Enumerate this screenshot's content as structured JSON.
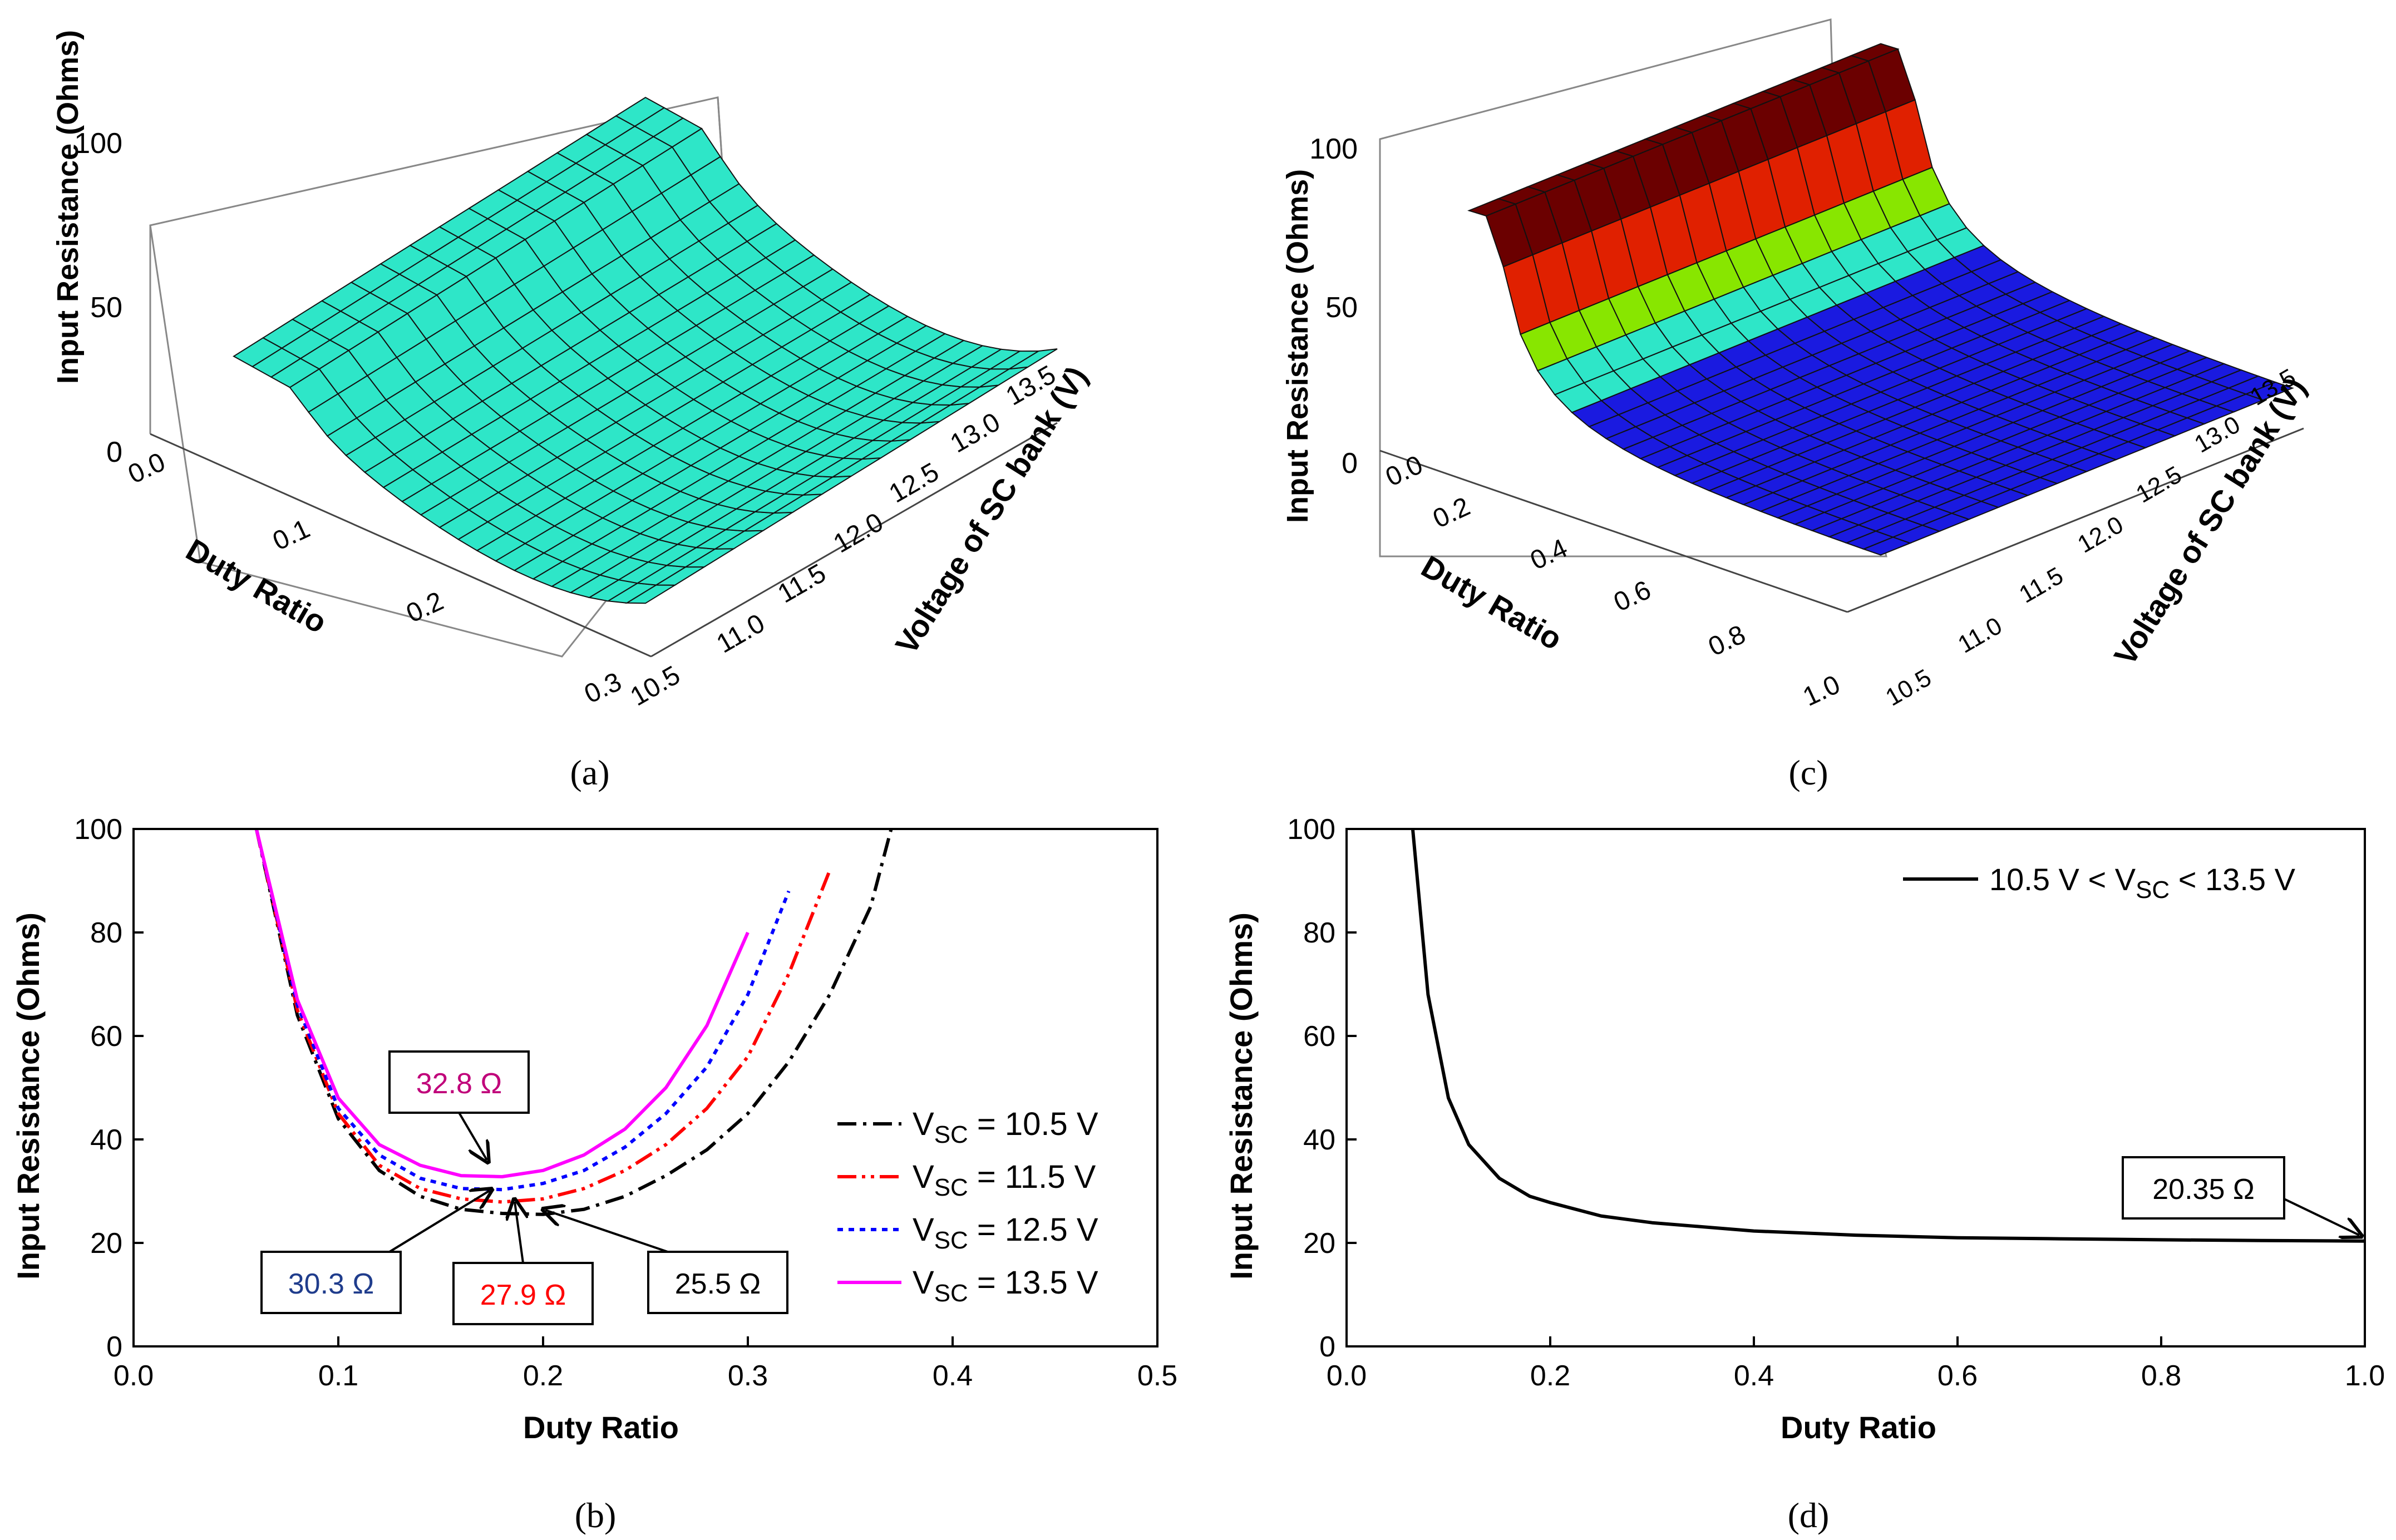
{
  "panel_labels": {
    "a": "(a)",
    "b": "(b)",
    "c": "(c)",
    "d": "(d)"
  },
  "chart_data": [
    {
      "id": "a",
      "type": "surface3d",
      "zlabel": "Input Resistance (Ohms)",
      "xlabel": "Duty Ratio",
      "ylabel": "Voltage of SC bank (V)",
      "z_ticks": [
        "0",
        "50",
        "100"
      ],
      "x_ticks": [
        "0.0",
        "0.1",
        "0.2",
        "0.3"
      ],
      "y_ticks": [
        "10.5",
        "11.0",
        "11.5",
        "12.0",
        "12.5",
        "13.0",
        "13.5"
      ],
      "xlim": [
        0.0,
        0.3
      ],
      "ylim": [
        10.5,
        13.5
      ],
      "zlim": [
        0,
        100
      ],
      "band_colors": [
        "#6b0000",
        "#b00000",
        "#e02000",
        "#ff3b00",
        "#ff9900",
        "#88e600",
        "#2ee6c8",
        "#d6d61a"
      ]
    },
    {
      "id": "b",
      "type": "line",
      "xlabel": "Duty Ratio",
      "ylabel": "Input Resistance (Ohms)",
      "xlim": [
        0.0,
        0.5
      ],
      "ylim": [
        0,
        100
      ],
      "x_ticks": [
        "0.0",
        "0.1",
        "0.2",
        "0.3",
        "0.4",
        "0.5"
      ],
      "y_ticks": [
        "0",
        "20",
        "40",
        "60",
        "80",
        "100"
      ],
      "x": [
        0.06,
        0.08,
        0.1,
        0.12,
        0.14,
        0.16,
        0.18,
        0.2,
        0.22,
        0.24,
        0.26,
        0.28,
        0.3,
        0.32,
        0.34,
        0.36,
        0.37
      ],
      "series": [
        {
          "name": "V_SC = 10.5 V",
          "color": "#000000",
          "dash": "dashdot",
          "values": [
            100,
            64,
            44,
            34,
            29,
            26.5,
            25.7,
            25.5,
            26.5,
            29,
            33,
            38,
            45,
            55,
            68,
            85,
            100
          ]
        },
        {
          "name": "V_SC = 11.5 V",
          "color": "#ff0000",
          "dash": "dashdotdot",
          "values": [
            100,
            65,
            45,
            35,
            30.5,
            28.5,
            27.9,
            28.5,
            30.5,
            34,
            39,
            46,
            56,
            72,
            92,
            null,
            null
          ]
        },
        {
          "name": "V_SC = 12.5 V",
          "color": "#0000ff",
          "dash": "dot",
          "values": [
            100,
            66,
            46,
            37,
            32.5,
            30.5,
            30.3,
            31.5,
            34,
            38.5,
            45,
            54,
            68,
            88,
            null,
            null,
            null
          ]
        },
        {
          "name": "V_SC = 13.5 V",
          "color": "#ff00ff",
          "dash": "solid",
          "values": [
            100,
            67,
            48,
            39,
            35,
            33,
            32.8,
            34,
            37,
            42,
            50,
            62,
            80,
            null,
            null,
            null,
            null
          ]
        }
      ],
      "legend": [
        {
          "main": "V",
          "sub": "SC",
          "rest": " = 10.5 V"
        },
        {
          "main": "V",
          "sub": "SC",
          "rest": " = 11.5 V"
        },
        {
          "main": "V",
          "sub": "SC",
          "rest": " = 12.5 V"
        },
        {
          "main": "V",
          "sub": "SC",
          "rest": " = 13.5 V"
        }
      ],
      "annotations": [
        {
          "text": "32.8 Ω",
          "color": "#c0007a",
          "x": 0.17,
          "y": 32.8
        },
        {
          "text": "30.3 Ω",
          "color": "#1f3c8c",
          "x": 0.175,
          "y": 30.3
        },
        {
          "text": "27.9 Ω",
          "color": "#ff0000",
          "x": 0.185,
          "y": 27.9
        },
        {
          "text": "25.5 Ω",
          "color": "#000000",
          "x": 0.2,
          "y": 25.5
        }
      ]
    },
    {
      "id": "c",
      "type": "surface3d",
      "zlabel": "Input Resistance (Ohms)",
      "xlabel": "Duty Ratio",
      "ylabel": "Voltage of SC bank (V)",
      "z_ticks": [
        "0",
        "50",
        "100"
      ],
      "x_ticks": [
        "0.0",
        "0.2",
        "0.4",
        "0.6",
        "0.8",
        "1.0"
      ],
      "y_ticks": [
        "10.5",
        "11.0",
        "11.5",
        "12.0",
        "12.5",
        "13.0",
        "13.5"
      ],
      "xlim": [
        0.0,
        1.0
      ],
      "ylim": [
        10.5,
        13.5
      ],
      "zlim": [
        0,
        100
      ],
      "band_colors": [
        "#6b0000",
        "#b00000",
        "#e02000",
        "#ff3b00",
        "#ff9900",
        "#88e600",
        "#2ee6c8",
        "#1a1ae0"
      ]
    },
    {
      "id": "d",
      "type": "line",
      "xlabel": "Duty Ratio",
      "ylabel": "Input Resistance (Ohms)",
      "xlim": [
        0.0,
        1.0
      ],
      "ylim": [
        0,
        100
      ],
      "x_ticks": [
        "0.0",
        "0.2",
        "0.4",
        "0.6",
        "0.8",
        "1.0"
      ],
      "y_ticks": [
        "0",
        "20",
        "40",
        "60",
        "80",
        "100"
      ],
      "x": [
        0.065,
        0.08,
        0.1,
        0.12,
        0.15,
        0.18,
        0.2,
        0.25,
        0.3,
        0.4,
        0.5,
        0.6,
        0.7,
        0.8,
        0.9,
        1.0
      ],
      "series": [
        {
          "name": "10.5 V < V_SC < 13.5 V",
          "color": "#000000",
          "dash": "solid",
          "values": [
            100,
            68,
            48,
            39,
            32.5,
            29,
            27.8,
            25.2,
            23.9,
            22.3,
            21.5,
            21.0,
            20.8,
            20.6,
            20.45,
            20.35
          ]
        }
      ],
      "legend": [
        {
          "main": "10.5 V < V",
          "sub": "SC",
          "rest": " < 13.5 V"
        }
      ],
      "annotations": [
        {
          "text": "20.35 Ω",
          "color": "#000000",
          "x": 1.0,
          "y": 20.35
        }
      ]
    }
  ]
}
